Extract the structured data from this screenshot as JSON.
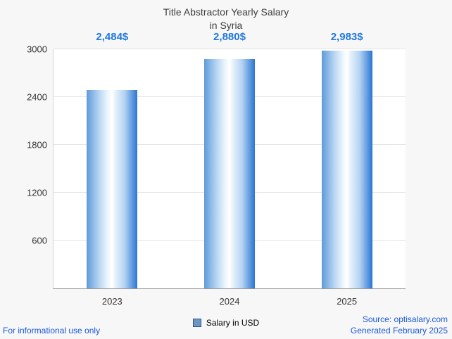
{
  "title": {
    "line1": "Title Abstractor Yearly Salary",
    "line2": "in Syria"
  },
  "chart_data": {
    "type": "bar",
    "title": "Title Abstractor Yearly Salary in Syria",
    "categories": [
      "2023",
      "2024",
      "2025"
    ],
    "values": [
      2484,
      2880,
      2983
    ],
    "value_labels": [
      "2,484$",
      "2,880$",
      "2,983$"
    ],
    "xlabel": "",
    "ylabel": "",
    "ylim": [
      0,
      3000
    ],
    "yticks": [
      600,
      1200,
      1800,
      2400,
      3000
    ],
    "grid": true,
    "legend_entries": [
      "Salary in USD"
    ],
    "legend_position": "bottom",
    "bar_gradient": [
      "#5e9bd9",
      "#ffffff",
      "#2a75d4"
    ]
  },
  "legend": {
    "label": "Salary in USD",
    "swatch_color": "#6d96c8"
  },
  "footer": {
    "left": "For informational use only",
    "source": "Source: optisalary.com",
    "generated": "Generated February 2025"
  },
  "colors": {
    "value_label": "#2079e0",
    "footer_text": "#1a58d8",
    "title_text": "#3d3d3d"
  }
}
